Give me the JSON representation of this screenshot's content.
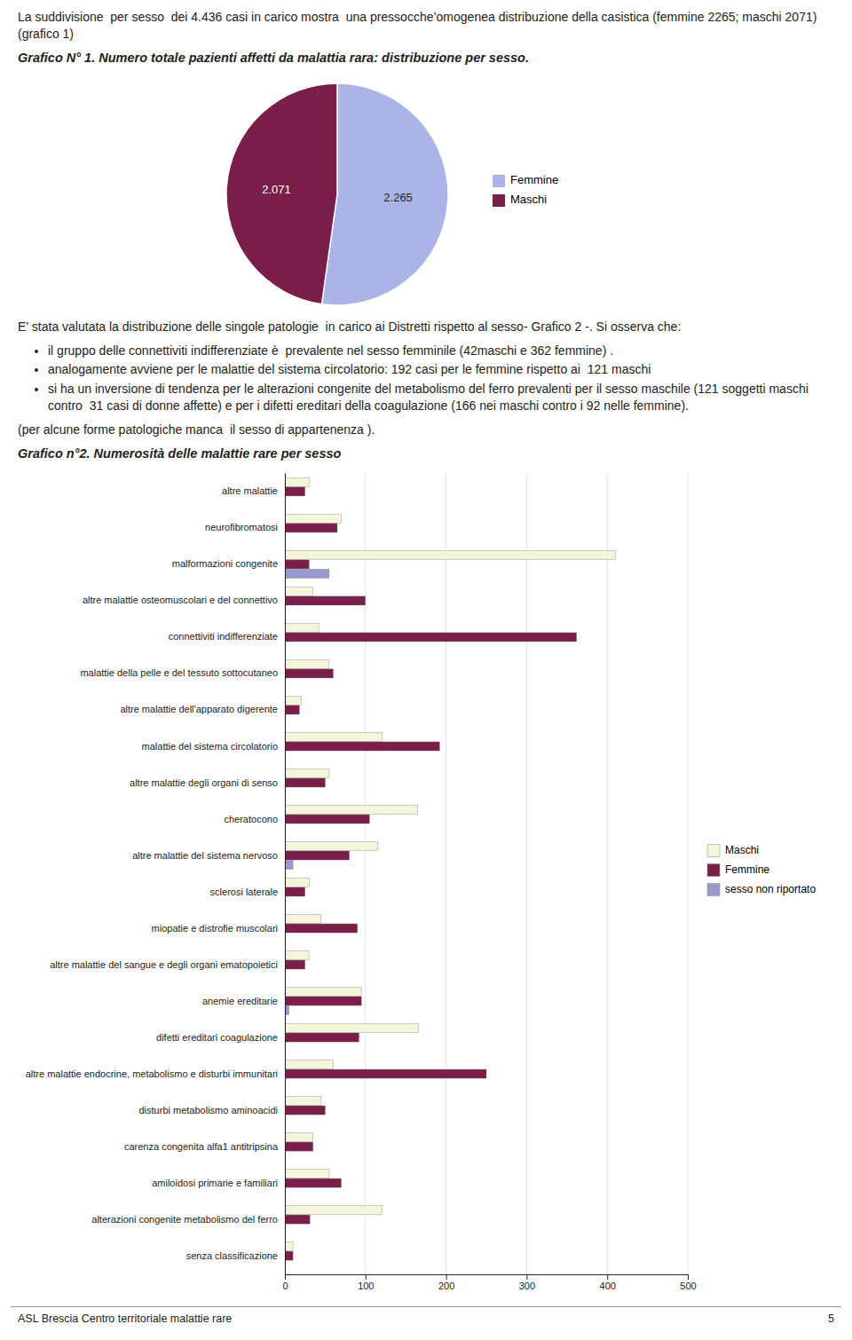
{
  "chart_data": [
    {
      "type": "pie",
      "title": "Grafico N° 1. Numero totale pazienti affetti da malattia rara: distribuzione per sesso.",
      "annotations": [
        "La suddivisione  per sesso  dei 4.436 casi in carico mostra  una pressocche’omogenea distribuzione della casistica (femmine 2265; maschi 2071) (grafico 1)"
      ],
      "categories": [
        "Femmine",
        "Maschi"
      ],
      "values": [
        2265,
        2071
      ],
      "value_labels": [
        "2.265",
        "2.071"
      ],
      "colors": [
        "#aab4e8",
        "#7a1f4a"
      ],
      "data_labels": true,
      "legend": "right"
    },
    {
      "type": "bar",
      "orientation": "horizontal",
      "title": "Grafico n°2. Numerosità delle malattie rare per sesso",
      "annotations": [
        "E’ stata valutata la distribuzione delle singole patologie  in carico ai Distretti rispetto al sesso- Grafico 2 -. Si osserva che:",
        [
          "il gruppo delle connettiviti indifferenziate è  prevalente nel sesso femminile (42maschi e 362 femmine) .",
          "analogamente avviene per le malattie del sistema circolatorio: 192 casi per le femmine rispetto ai  121 maschi",
          "si ha un inversione di tendenza per le alterazioni congenite del metabolismo del ferro prevalenti per il sesso maschile (121 soggetti maschi contro  31 casi di donne affette) e per i difetti ereditari della coagulazione (166 nei maschi contro i 92 nelle femmine)."
        ],
        "(per alcune forme patologiche manca  il sesso di appartenenza ).",
        [
          "ASL Brescia Centro territoriale malattie rare",
          "5"
        ]
      ],
      "categories": [
        "altre malattie",
        "neurofibromatosi",
        "malformazioni congenite",
        "altre malattie osteomuscolari e del connettivo",
        "connettiviti indifferenziate",
        "malattie della pelle e del tessuto sottocutaneo",
        "altre malattie dell'apparato digerente",
        "malattie del sistema circolatorio",
        "altre malattie degli organi di senso",
        "cheratocono",
        "altre malattie del sistema nervoso",
        "sclerosi laterale",
        "miopatie e distrofie muscolari",
        "altre malattie del sangue e degli organi ematopoietici",
        "anemie ereditarie",
        "difetti ereditari coagulazione",
        "altre malattie endocrine, metabolismo e disturbi immunitari",
        "disturbi metabolismo aminoacidi",
        "carenza congenita alfa1 antitripsina",
        "amiloidosi primarie e familiari",
        "alterazioni congenite metabolismo del ferro",
        "senza classificazione"
      ],
      "series": [
        {
          "name": "Maschi",
          "color": "#f5f5dc",
          "values": [
            30,
            70,
            410,
            35,
            42,
            55,
            20,
            121,
            55,
            165,
            115,
            30,
            45,
            30,
            95,
            166,
            60,
            45,
            35,
            55,
            121,
            10
          ]
        },
        {
          "name": "Femmine",
          "color": "#7a1f4a",
          "values": [
            25,
            65,
            30,
            100,
            362,
            60,
            18,
            192,
            50,
            105,
            80,
            25,
            90,
            25,
            95,
            92,
            250,
            50,
            35,
            70,
            31,
            10
          ]
        },
        {
          "name": "sesso non riportato",
          "color": "#9999cc",
          "values": [
            0,
            0,
            55,
            0,
            0,
            0,
            0,
            0,
            0,
            0,
            10,
            0,
            0,
            0,
            5,
            0,
            0,
            0,
            0,
            0,
            0,
            0
          ]
        }
      ],
      "xlim": [
        0,
        500
      ],
      "xticks": [
        0,
        100,
        200,
        300,
        400,
        500
      ],
      "grid": true,
      "legend": "right"
    }
  ]
}
